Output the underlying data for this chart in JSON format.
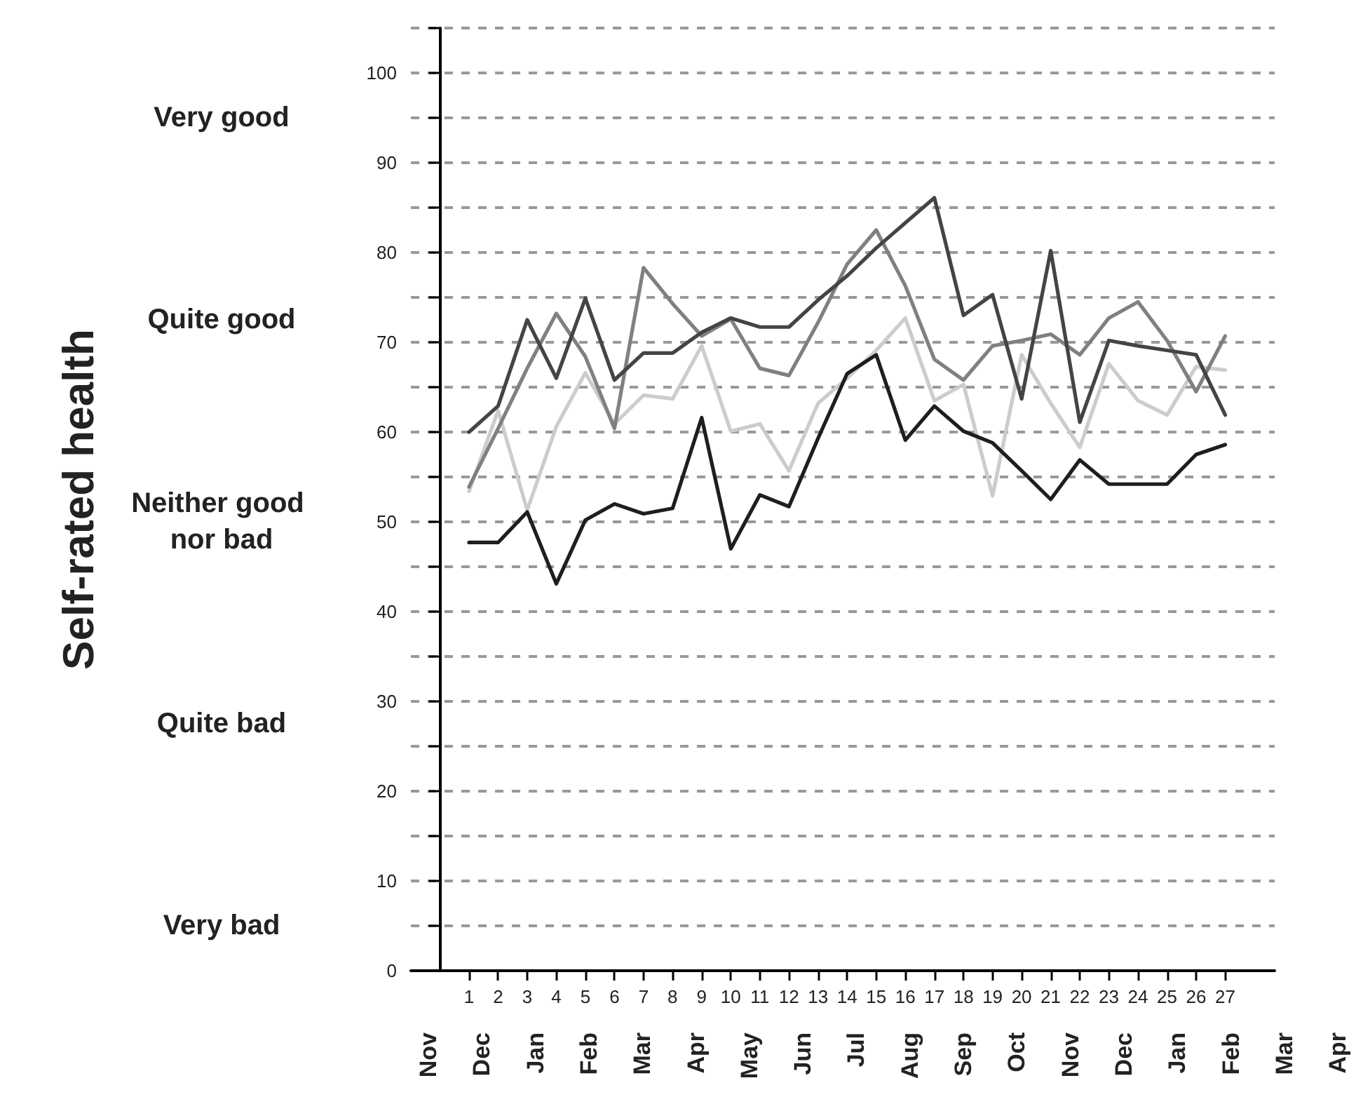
{
  "chart_data": {
    "type": "line",
    "x": [
      1,
      2,
      3,
      4,
      5,
      6,
      7,
      8,
      9,
      10,
      11,
      12,
      13,
      14,
      15,
      16,
      17,
      18,
      19,
      20,
      21,
      22,
      23,
      24,
      25,
      26,
      27
    ],
    "xlim": [
      -1,
      28.7
    ],
    "xticks": [
      1,
      2,
      3,
      4,
      5,
      6,
      7,
      8,
      9,
      10,
      11,
      12,
      13,
      14,
      15,
      16,
      17,
      18,
      19,
      20,
      21,
      22,
      23,
      24,
      25,
      26,
      27
    ],
    "annotations": [
      "Self-rated health",
      "Very good",
      "Quite good",
      "Neither good nor bad",
      "Quite bad",
      "Very bad",
      "Nov",
      "Dec",
      "Jan",
      "Feb",
      "Mar",
      "Apr",
      "May",
      "Jun",
      "Jul",
      "Aug",
      "Sep",
      "Oct",
      "Nov",
      "Dec",
      "Jan",
      "Feb",
      "Mar",
      "Apr"
    ],
    "ylim": [
      0,
      105
    ],
    "yticks": [
      0,
      {
        "value": 5,
        "label": null
      },
      10,
      {
        "value": 15,
        "label": null
      },
      20,
      {
        "value": 25,
        "label": null
      },
      30,
      {
        "value": 35,
        "label": null
      },
      40,
      {
        "value": 45,
        "label": null
      },
      50,
      {
        "value": 55,
        "label": null
      },
      60,
      {
        "value": 65,
        "label": null
      },
      70,
      {
        "value": 75,
        "label": null
      },
      80,
      {
        "value": 85,
        "label": null
      },
      90,
      {
        "value": 95,
        "label": null
      },
      100,
      {
        "value": 105,
        "label": null
      }
    ],
    "grid": "y",
    "marker": "none",
    "line_style": "solid",
    "series": [
      {
        "color": "#cccccc",
        "values": [
          53.4,
          62.4,
          51.3,
          60.6,
          66.6,
          60.9,
          64.1,
          63.7,
          69.6,
          60.1,
          60.9,
          55.7,
          63.2,
          66.0,
          69.1,
          72.7,
          63.5,
          65.3,
          52.9,
          68.6,
          63.2,
          58.3,
          67.6,
          63.5,
          61.9,
          67.3,
          66.9
        ]
      },
      {
        "color": "#808080",
        "values": [
          53.9,
          60.4,
          67.1,
          73.2,
          68.4,
          60.4,
          78.3,
          74.3,
          70.7,
          72.6,
          67.1,
          66.3,
          72.2,
          78.7,
          82.5,
          76.3,
          68.1,
          65.8,
          69.6,
          70.2,
          70.9,
          68.6,
          72.7,
          74.5,
          70.2,
          64.5,
          70.7
        ]
      },
      {
        "color": "#444444",
        "values": [
          60.0,
          62.9,
          72.5,
          66.0,
          74.9,
          65.8,
          68.8,
          68.8,
          71.1,
          72.7,
          71.7,
          71.7,
          74.7,
          77.4,
          80.5,
          83.3,
          86.1,
          73.0,
          75.3,
          63.7,
          80.2,
          61.1,
          70.2,
          69.6,
          69.1,
          68.6,
          61.9
        ]
      },
      {
        "color": "#1e1e1e",
        "values": [
          47.7,
          47.7,
          51.1,
          43.1,
          50.2,
          52.0,
          50.9,
          51.5,
          61.6,
          47.0,
          53.0,
          51.7,
          59.3,
          66.5,
          68.6,
          59.1,
          62.9,
          60.1,
          58.8,
          55.7,
          52.5,
          56.9,
          54.2,
          54.2,
          54.2,
          57.5,
          58.6
        ]
      }
    ]
  }
}
